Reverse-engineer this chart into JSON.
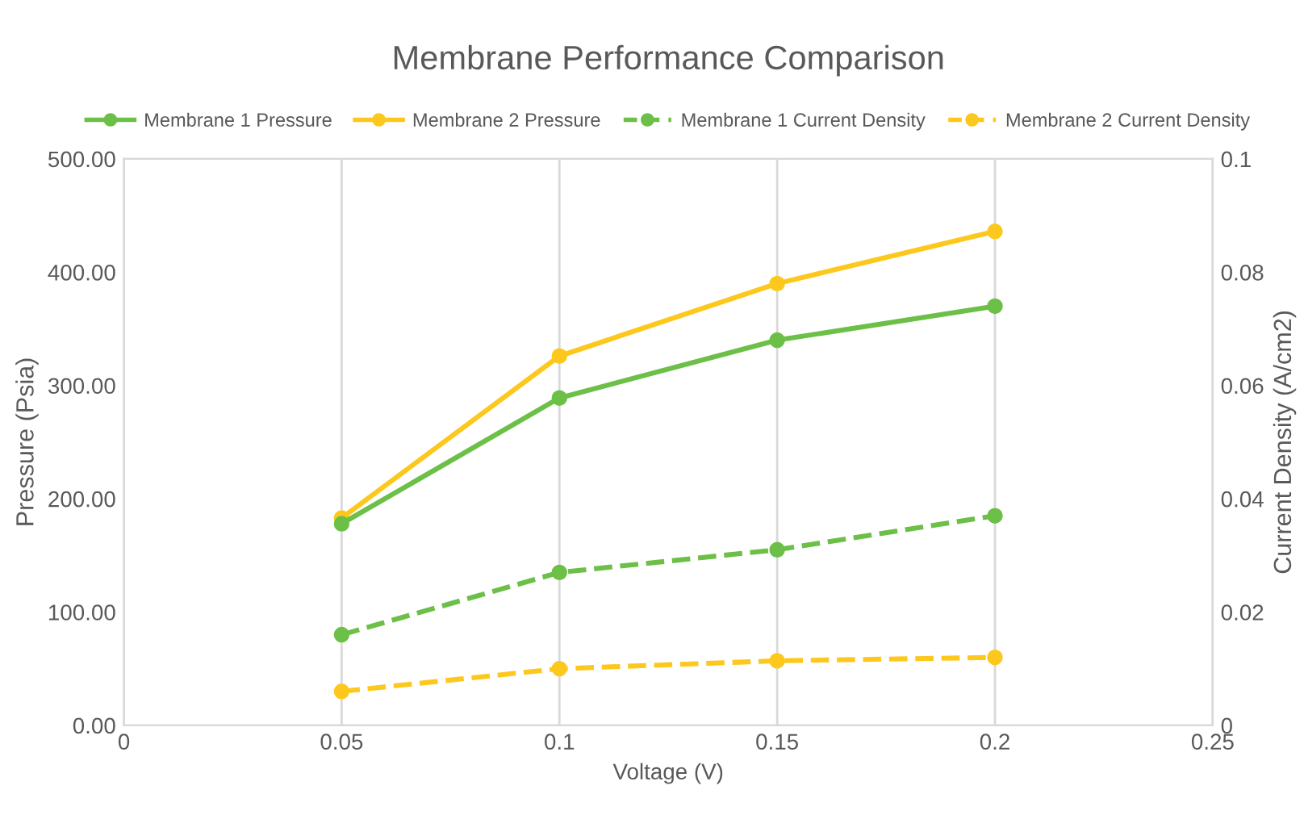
{
  "chart_data": {
    "type": "line",
    "title": "Membrane Performance Comparison",
    "xlabel": "Voltage (V)",
    "ylabel": "Pressure (Psia)",
    "y2label": "Current Density (A/cm2)",
    "x": [
      0.05,
      0.1,
      0.15,
      0.2
    ],
    "series": [
      {
        "name": "Membrane 1 Pressure",
        "color": "#6cbf47",
        "values": [
          178,
          289,
          340,
          370
        ],
        "line_style": "solid"
      },
      {
        "name": "Membrane 2 Pressure",
        "color": "#fdc81d",
        "values": [
          183,
          326,
          390,
          436
        ],
        "line_style": "solid"
      },
      {
        "name": "Membrane 1 Current Density",
        "color": "#6cbf47",
        "values": [
          0.016,
          0.027,
          0.031,
          0.037
        ],
        "line_style": "dashed",
        "axis": "y2"
      },
      {
        "name": "Membrane 2 Current Density",
        "color": "#fdc81d",
        "values": [
          0.006,
          0.01,
          0.0114,
          0.012
        ],
        "line_style": "dashed",
        "axis": "y2"
      }
    ],
    "xlim": [
      0,
      0.25
    ],
    "xticks": [
      0,
      0.05,
      0.1,
      0.15,
      0.2,
      0.25
    ],
    "ylim": [
      0,
      500
    ],
    "yticks": [
      {
        "value": 0,
        "label": "0.00"
      },
      {
        "value": 100,
        "label": "100.00"
      },
      {
        "value": 200,
        "label": "200.00"
      },
      {
        "value": 300,
        "label": "300.00"
      },
      {
        "value": 400,
        "label": "400.00"
      },
      {
        "value": 500,
        "label": "500.00"
      }
    ],
    "y2lim": [
      0,
      0.1
    ],
    "y2ticks": [
      0,
      0.02,
      0.04,
      0.06,
      0.08,
      0.1
    ],
    "grid": "x",
    "legend": "top",
    "marker": "circle"
  }
}
